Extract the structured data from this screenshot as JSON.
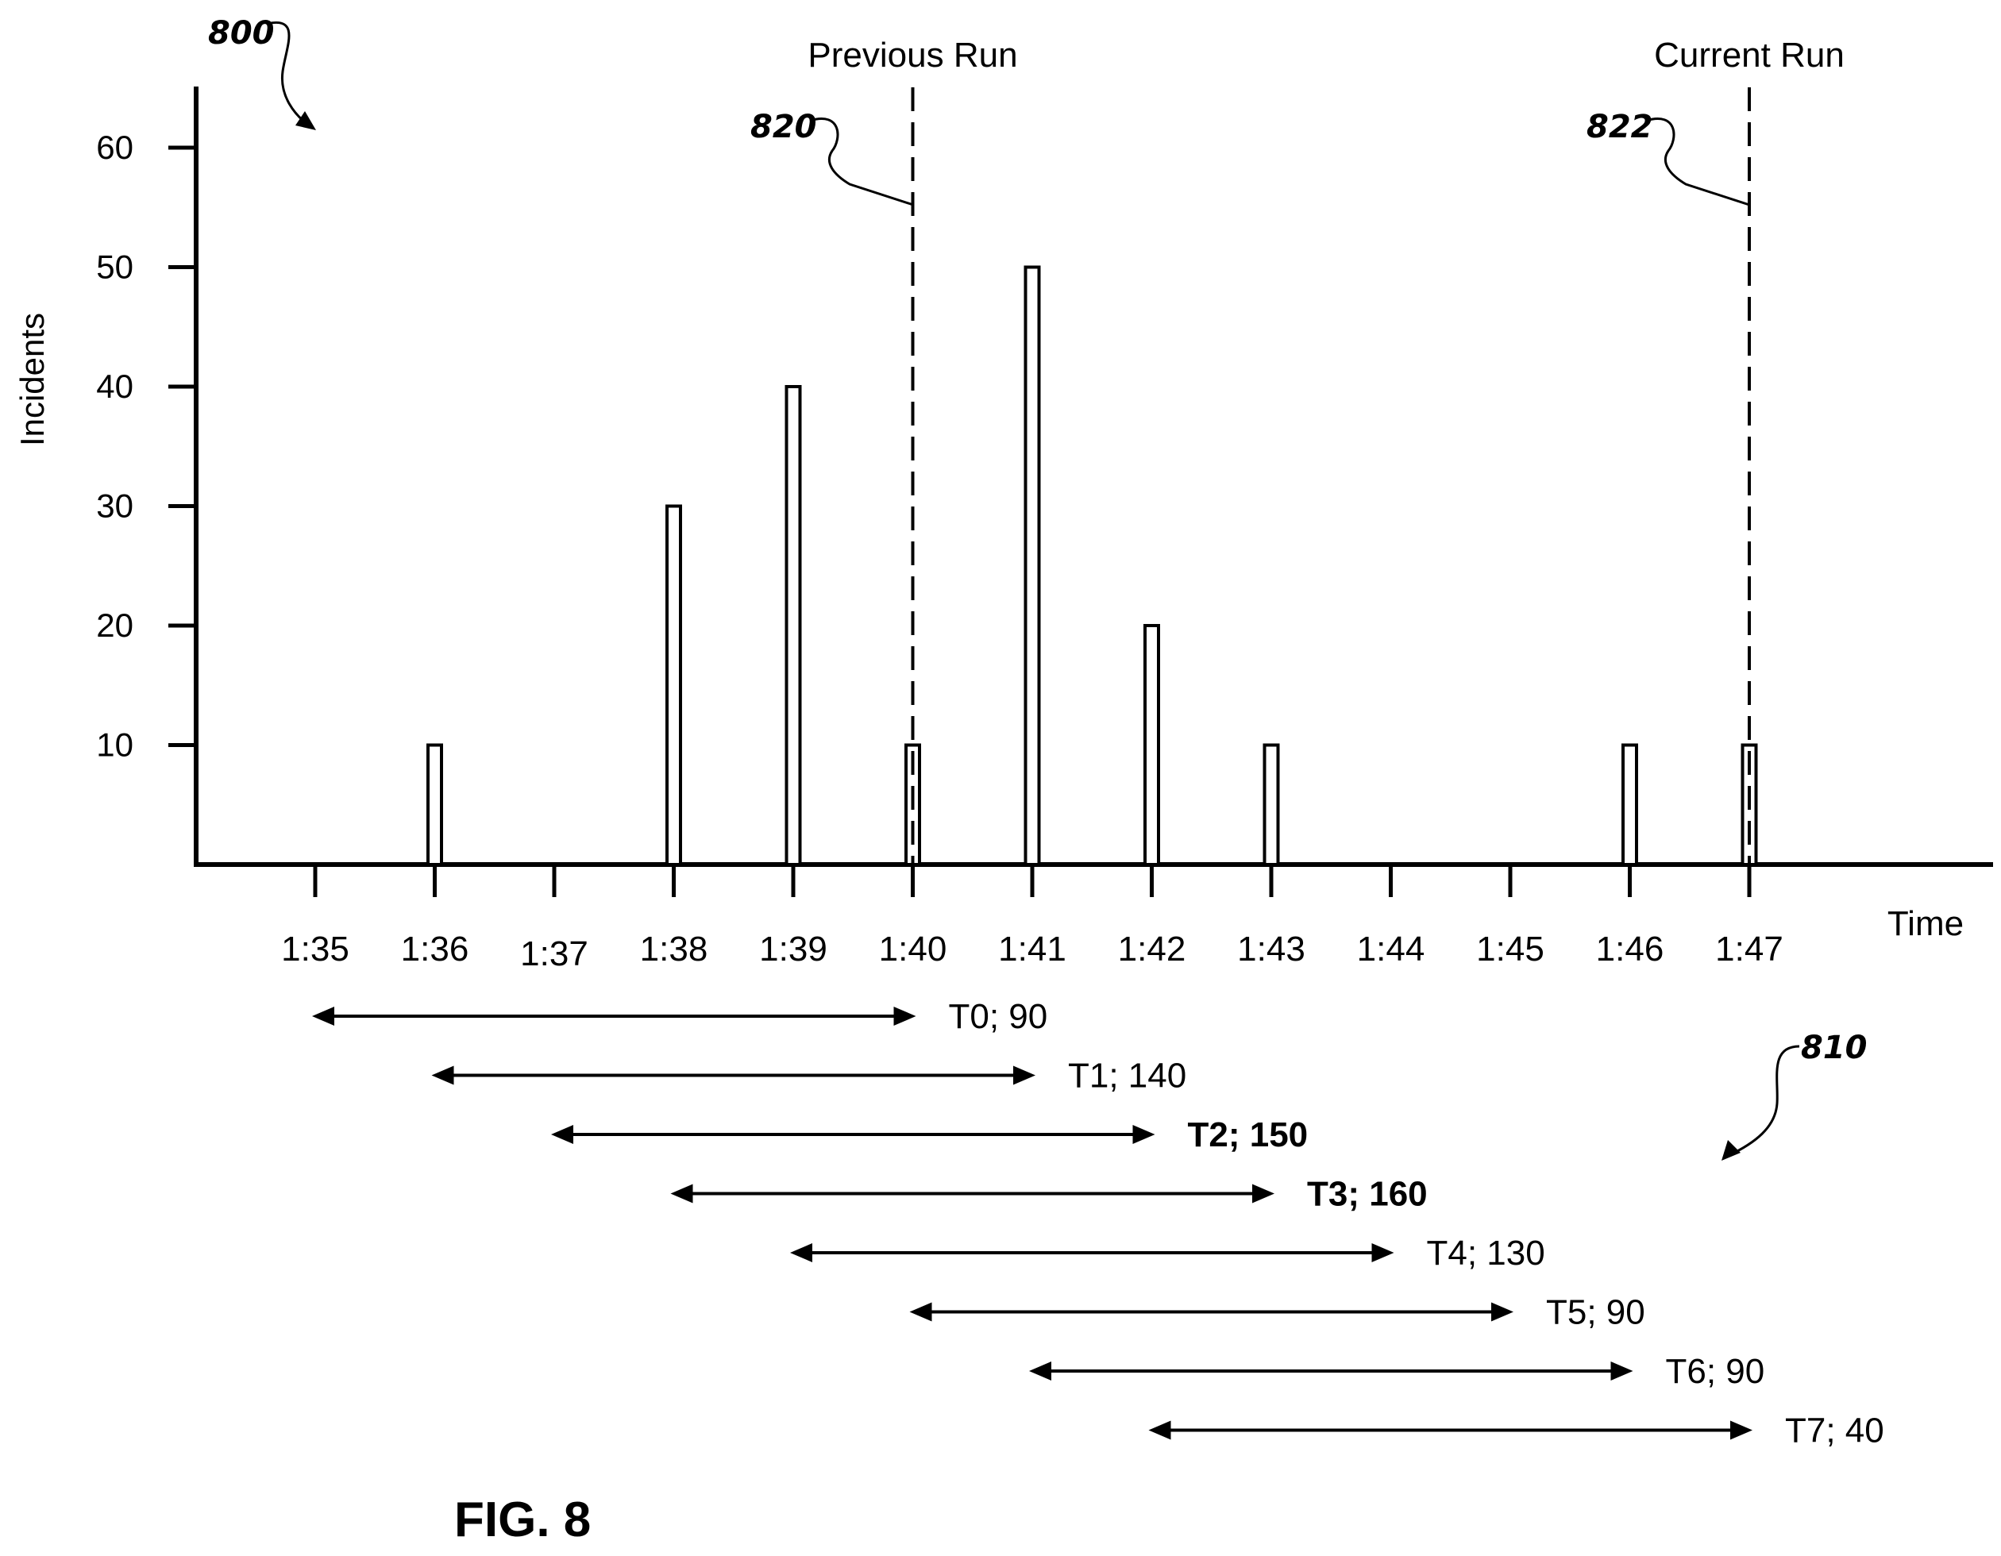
{
  "figure_label": "FIG. 8",
  "reference_numerals": {
    "figure": "800",
    "previous_run_marker": "820",
    "current_run_marker": "822",
    "windows": "810"
  },
  "chart_data": {
    "type": "bar",
    "ylabel": "Incidents",
    "xlabel": "Time",
    "categories": [
      "1:35",
      "1:36",
      "1:37",
      "1:38",
      "1:39",
      "1:40",
      "1:41",
      "1:42",
      "1:43",
      "1:44",
      "1:45",
      "1:46",
      "1:47"
    ],
    "values": [
      0,
      10,
      0,
      30,
      40,
      10,
      50,
      20,
      10,
      0,
      0,
      10,
      10
    ],
    "ylim": [
      0,
      60
    ],
    "yticks": [
      10,
      20,
      30,
      40,
      50,
      60
    ],
    "grid": false,
    "markers": [
      {
        "label": "Previous Run",
        "at": "1:40",
        "ref": "820"
      },
      {
        "label": "Current Run",
        "at": "1:47",
        "ref": "822"
      }
    ],
    "windows": [
      {
        "name": "T0",
        "value": 90,
        "start": "1:35",
        "end": "1:40",
        "label": "T0; 90",
        "bold": false
      },
      {
        "name": "T1",
        "value": 140,
        "start": "1:36",
        "end": "1:41",
        "label": "T1; 140",
        "bold": false
      },
      {
        "name": "T2",
        "value": 150,
        "start": "1:37",
        "end": "1:42",
        "label": "T2; 150",
        "bold": true
      },
      {
        "name": "T3",
        "value": 160,
        "start": "1:38",
        "end": "1:43",
        "label": "T3; 160",
        "bold": true
      },
      {
        "name": "T4",
        "value": 130,
        "start": "1:39",
        "end": "1:44",
        "label": "T4; 130",
        "bold": false
      },
      {
        "name": "T5",
        "value": 90,
        "start": "1:40",
        "end": "1:45",
        "label": "T5; 90",
        "bold": false
      },
      {
        "name": "T6",
        "value": 90,
        "start": "1:41",
        "end": "1:46",
        "label": "T6; 90",
        "bold": false
      },
      {
        "name": "T7",
        "value": 40,
        "start": "1:42",
        "end": "1:47",
        "label": "T7; 40",
        "bold": false
      }
    ]
  }
}
